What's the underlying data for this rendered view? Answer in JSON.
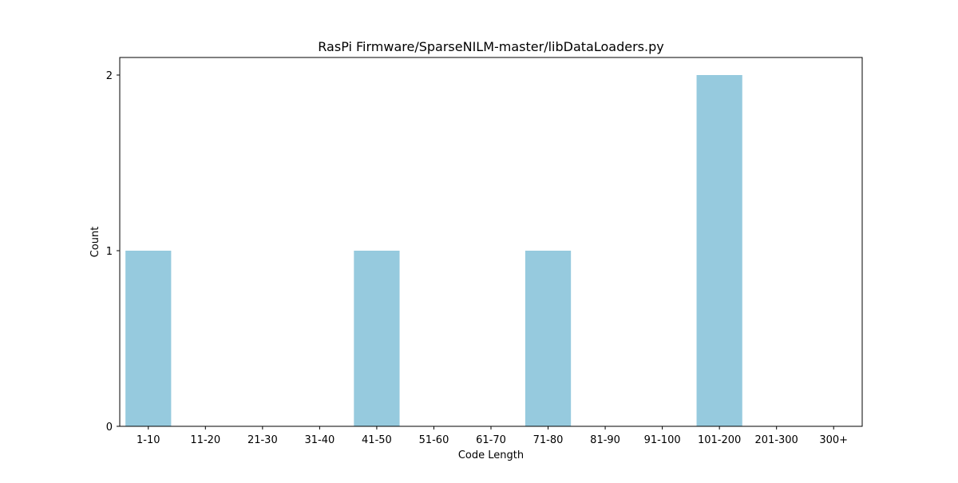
{
  "chart_data": {
    "type": "bar",
    "title": "RasPi Firmware/SparseNILM-master/libDataLoaders.py",
    "xlabel": "Code Length",
    "ylabel": "Count",
    "categories": [
      "1-10",
      "11-20",
      "21-30",
      "31-40",
      "41-50",
      "51-60",
      "61-70",
      "71-80",
      "81-90",
      "91-100",
      "101-200",
      "201-300",
      "300+"
    ],
    "values": [
      1,
      0,
      0,
      0,
      1,
      0,
      0,
      1,
      0,
      0,
      2,
      0,
      0
    ],
    "ylim": [
      0,
      2.1
    ],
    "yticks": [
      0,
      1,
      2
    ],
    "grid": false,
    "legend": "none",
    "bar_color": "#96cade"
  }
}
